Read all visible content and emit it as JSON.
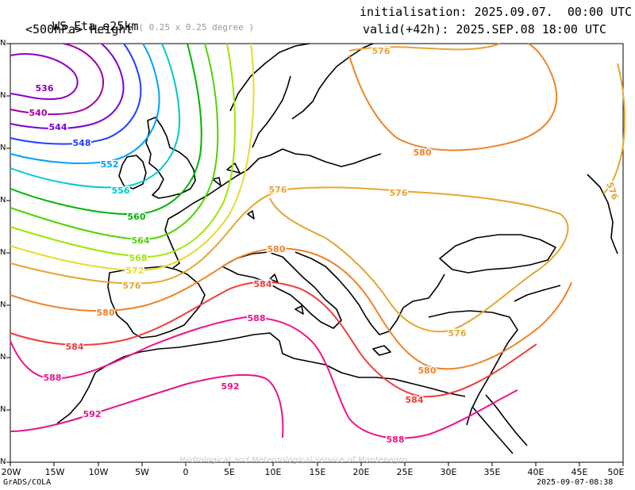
{
  "header": {
    "model": "WS_Eta_e25km",
    "resolution": "( 0.25 x 0.25 degree )",
    "field": "<500hPa> Height",
    "init": "initialisation: 2025.09.07.  00:00 UTC",
    "valid": "valid(+42h): 2025.SEP.08 18:00 UTC"
  },
  "footer": {
    "left": "GrADS/COLA",
    "right": "2025-09-07-08:38",
    "watermark": "Hydrological and Meteorological service of Montenegro"
  },
  "axes": {
    "x_ticks": [
      "20W",
      "15W",
      "10W",
      "5W",
      "0",
      "5E",
      "10E",
      "15E",
      "20E",
      "25E",
      "30E",
      "35E",
      "40E",
      "45E",
      "50E"
    ],
    "y_ticks": [
      "N",
      "N",
      "N",
      "N",
      "N",
      "N",
      "N",
      "N",
      "N",
      "N"
    ]
  },
  "colors": {
    "c536": "#8a00c8",
    "c540": "#a000a0",
    "c544": "#7a00d8",
    "c548": "#2040ff",
    "c552": "#00a0ff",
    "c556": "#00c8c8",
    "c560": "#00b400",
    "c564": "#50d200",
    "c568": "#a0e600",
    "c572": "#e6dc32",
    "c576": "#e6a532",
    "c580": "#f08228",
    "c584": "#f03c3c",
    "c588": "#f0148c",
    "c592": "#e6148c"
  },
  "contours": [
    {
      "label": "536",
      "color_key": "c536"
    },
    {
      "label": "540",
      "color_key": "c540"
    },
    {
      "label": "544",
      "color_key": "c544"
    },
    {
      "label": "548",
      "color_key": "c548"
    },
    {
      "label": "552",
      "color_key": "c552"
    },
    {
      "label": "556",
      "color_key": "c556"
    },
    {
      "label": "560",
      "color_key": "c560"
    },
    {
      "label": "564",
      "color_key": "c564"
    },
    {
      "label": "568",
      "color_key": "c568"
    },
    {
      "label": "572",
      "color_key": "c572"
    },
    {
      "label": "576",
      "color_key": "c576"
    },
    {
      "label": "580",
      "color_key": "c580"
    },
    {
      "label": "584",
      "color_key": "c584"
    },
    {
      "label": "588",
      "color_key": "c588"
    },
    {
      "label": "592",
      "color_key": "c592"
    }
  ]
}
